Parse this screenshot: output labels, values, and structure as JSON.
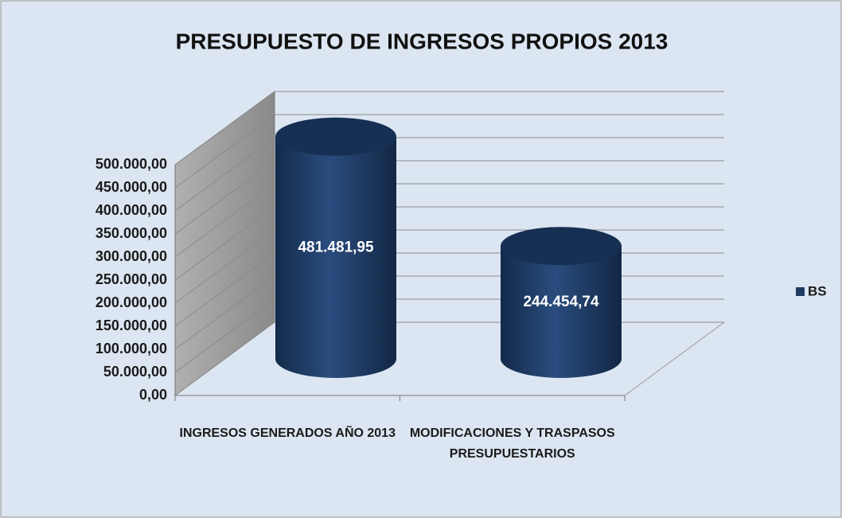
{
  "chart_data": {
    "type": "bar3d",
    "title": "PRESUPUESTO DE INGRESOS PROPIOS 2013",
    "categories": [
      "INGRESOS GENERADOS AÑO 2013",
      "MODIFICACIONES Y TRASPASOS PRESUPUESTARIOS"
    ],
    "series": [
      {
        "name": "BS",
        "color": "#1f3b63",
        "values": [
          481481.95,
          244454.74
        ],
        "value_labels": [
          "481.481,95",
          "244.454,74"
        ]
      }
    ],
    "ylim": [
      0,
      500000
    ],
    "yticks": [
      {
        "value": 0,
        "label": "0,00"
      },
      {
        "value": 50000,
        "label": "50.000,00"
      },
      {
        "value": 100000,
        "label": "100.000,00"
      },
      {
        "value": 150000,
        "label": "150.000,00"
      },
      {
        "value": 200000,
        "label": "200.000,00"
      },
      {
        "value": 250000,
        "label": "250.000,00"
      },
      {
        "value": 300000,
        "label": "300.000,00"
      },
      {
        "value": 350000,
        "label": "350.000,00"
      },
      {
        "value": 400000,
        "label": "400.000,00"
      },
      {
        "value": 450000,
        "label": "450.000,00"
      },
      {
        "value": 500000,
        "label": "500.000,00"
      }
    ],
    "grid": true,
    "legend": "right"
  }
}
